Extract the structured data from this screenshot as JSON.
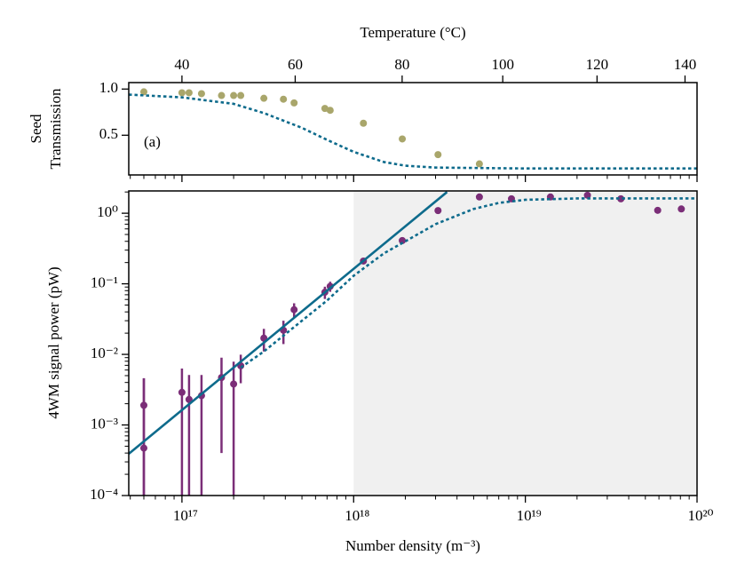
{
  "chart_data": [
    {
      "type": "scatter",
      "ylabel": [
        "Seed",
        "Transmission"
      ],
      "x2label": "Temperature (°C)",
      "x2ticks": [
        40,
        60,
        80,
        100,
        120,
        140
      ],
      "annotation": "(a)",
      "log_x": true,
      "xlim": [
        4.9e+16,
        1e+20
      ],
      "xticks": [
        1e+17,
        1e+18,
        1e+19,
        1e+20
      ],
      "ylim": [
        0.07,
        1.07
      ],
      "yticks": [
        0.5,
        {
          "value": 1,
          "label": "1.0"
        }
      ],
      "series": [
        {
          "type": "scatter",
          "color": "#a9a66b",
          "x": [
            6e+16,
            1e+17,
            1.1e+17,
            1.3e+17,
            1.7e+17,
            2e+17,
            2.2e+17,
            3e+17,
            3.9e+17,
            4.5e+17,
            6.8e+17,
            7.3e+17,
            1.14e+18,
            1.92e+18,
            3.1e+18,
            5.4e+18
          ],
          "values": [
            0.97,
            0.96,
            0.96,
            0.95,
            0.93,
            0.93,
            0.93,
            0.9,
            0.89,
            0.85,
            0.79,
            0.77,
            0.63,
            0.46,
            0.29,
            0.19
          ]
        },
        {
          "type": "line",
          "style": "dotted",
          "color": "#0e6b8c",
          "x": [
            4.9e+16,
            1e+17,
            2e+17,
            3e+17,
            5e+17,
            7e+17,
            1e+18,
            1.5e+18,
            2e+18,
            3e+18,
            1e+19,
            1e+20
          ],
          "values": [
            0.94,
            0.91,
            0.84,
            0.74,
            0.58,
            0.45,
            0.32,
            0.21,
            0.17,
            0.15,
            0.14,
            0.14
          ]
        }
      ]
    },
    {
      "type": "scatter",
      "xlabel": "Number density (m⁻³)",
      "ylabel": "4WM signal power (pW)",
      "log_x": true,
      "log_y": true,
      "xlim": [
        4.9e+16,
        1e+20
      ],
      "xticks": [
        {
          "value": 1e+17,
          "label": "10¹⁷"
        },
        {
          "value": 1e+18,
          "label": "10¹⁸"
        },
        {
          "value": 1e+19,
          "label": "10¹⁹"
        },
        {
          "value": 1e+20,
          "label": "10²⁰"
        }
      ],
      "ylim": [
        0.0001,
        2.07
      ],
      "yticks": [
        {
          "value": 0.0001,
          "label": "10⁻⁴"
        },
        {
          "value": 0.001,
          "label": "10⁻³"
        },
        {
          "value": 0.01,
          "label": "10⁻²"
        },
        {
          "value": 0.1,
          "label": "10⁻¹"
        },
        {
          "value": 1,
          "label": "10⁰"
        }
      ],
      "shaded_xspan": [
        1e+18,
        1e+20
      ],
      "series": [
        {
          "type": "scatter",
          "color": "#7b2e78",
          "x": [
            6e+16,
            6e+16,
            1e+17,
            1.1e+17,
            1.3e+17,
            1.7e+17,
            2e+17,
            2.2e+17,
            3e+17,
            3.9e+17,
            4.5e+17,
            6.8e+17,
            7.3e+17,
            1.14e+18,
            1.92e+18,
            3.1e+18,
            5.4e+18,
            8.3e+18,
            1.4e+19,
            2.3e+19,
            3.6e+19,
            5.9e+19,
            8.1e+19
          ],
          "values": [
            0.0019,
            0.00047,
            0.0029,
            0.0023,
            0.0026,
            0.0047,
            0.0038,
            0.0069,
            0.017,
            0.022,
            0.043,
            0.076,
            0.092,
            0.21,
            0.41,
            1.09,
            1.7,
            1.6,
            1.7,
            1.8,
            1.6,
            1.1,
            1.15
          ],
          "errors": [
            0.0027,
            0.0041,
            0.0034,
            0.0028,
            0.0025,
            0.0043,
            0.0041,
            0.003,
            0.006,
            0.008,
            0.01,
            0.015,
            0.015,
            null,
            null,
            null,
            null,
            null,
            null,
            null,
            null,
            null,
            null
          ]
        },
        {
          "type": "line",
          "style": "solid",
          "color": "#0e6b8c",
          "x": [
            4.9e+16,
            3.5e+18
          ],
          "values": [
            0.00039,
            2.0
          ]
        },
        {
          "type": "line",
          "style": "dotted",
          "color": "#0e6b8c",
          "x": [
            2.2e+17,
            3e+17,
            5e+17,
            7e+17,
            1e+18,
            1.5e+18,
            2e+18,
            3e+18,
            5e+18,
            7e+18,
            1e+19,
            2e+19,
            1e+20
          ],
          "values": [
            0.0065,
            0.011,
            0.03,
            0.058,
            0.13,
            0.27,
            0.4,
            0.7,
            1.15,
            1.4,
            1.55,
            1.62,
            1.62
          ]
        }
      ]
    }
  ]
}
